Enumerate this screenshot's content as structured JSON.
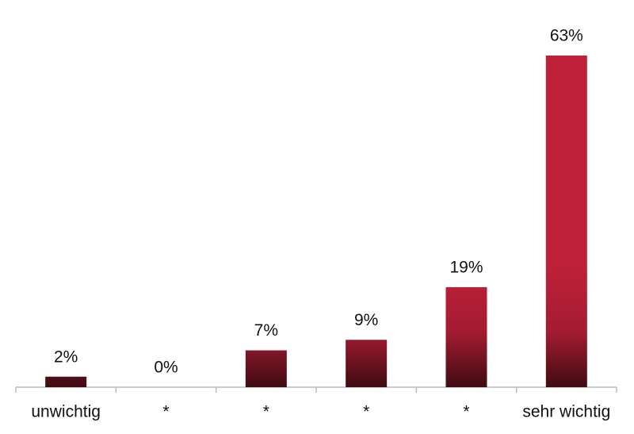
{
  "chart_data": {
    "type": "bar",
    "categories": [
      "unwichtig",
      "*",
      "*",
      "*",
      "*",
      "sehr wichtig"
    ],
    "values": [
      2,
      0,
      7,
      9,
      19,
      63
    ],
    "value_labels": [
      "2%",
      "0%",
      "7%",
      "9%",
      "19%",
      "63%"
    ],
    "color": "#c0213a"
  }
}
